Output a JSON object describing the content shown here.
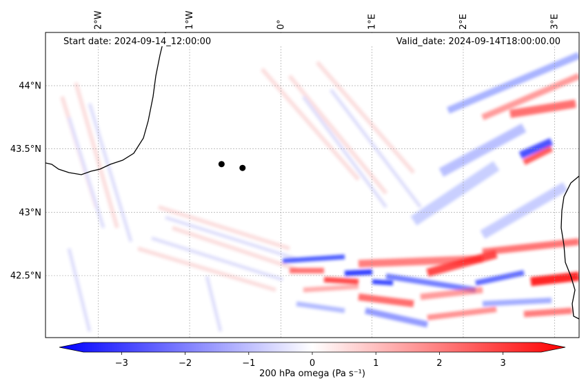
{
  "map": {
    "start_label": "Start date: 2024-09-14_12:00:00",
    "valid_label": "Valid_date: 2024-09-14T18:00:00.00",
    "lon_ticks": [
      {
        "lon": -2,
        "label": "2°W"
      },
      {
        "lon": -1,
        "label": "1°W"
      },
      {
        "lon": 0,
        "label": "0°"
      },
      {
        "lon": 1,
        "label": "1°E"
      },
      {
        "lon": 2,
        "label": "2°E"
      },
      {
        "lon": 3,
        "label": "3°E"
      }
    ],
    "lat_ticks": [
      {
        "lat": 44,
        "label": "44°N"
      },
      {
        "lat": 43.5,
        "label": "43.5°N"
      },
      {
        "lat": 43,
        "label": "43°N"
      },
      {
        "lat": 42.5,
        "label": "42.5°N"
      }
    ],
    "extent": {
      "lon_min": -2.58,
      "lon_max": 3.27,
      "lat_min": 42.01,
      "lat_max": 44.42
    },
    "markers": [
      {
        "lon": -0.65,
        "lat": 43.38
      },
      {
        "lon": -0.42,
        "lat": 43.35
      }
    ]
  },
  "colorbar": {
    "label": "200 hPa omega (Pa s⁻¹)",
    "min": -3.6,
    "max": 3.6,
    "ticks": [
      {
        "value": -3,
        "label": "−3"
      },
      {
        "value": -2,
        "label": "−2"
      },
      {
        "value": -1,
        "label": "−1"
      },
      {
        "value": 0,
        "label": "0"
      },
      {
        "value": 1,
        "label": "1"
      },
      {
        "value": 2,
        "label": "2"
      },
      {
        "value": 3,
        "label": "3"
      }
    ],
    "colors": {
      "negative": "#0000ff",
      "neutral": "#ffffff",
      "positive": "#ff0000"
    }
  }
}
